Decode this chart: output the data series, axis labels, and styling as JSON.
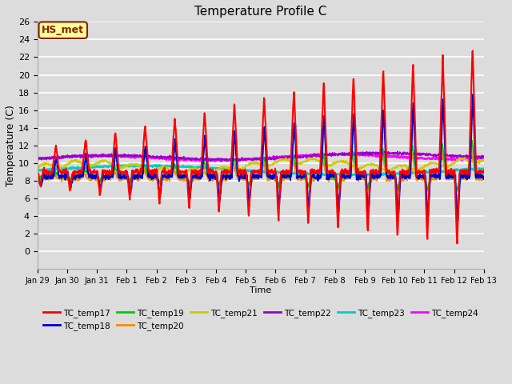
{
  "title": "Temperature Profile C",
  "xlabel": "Time",
  "ylabel": "Temperature (C)",
  "ylim": [
    -2,
    26
  ],
  "yticks": [
    0,
    2,
    4,
    6,
    8,
    10,
    12,
    14,
    16,
    18,
    20,
    22,
    24,
    26
  ],
  "bg_color": "#dcdcdc",
  "annotation_text": "HS_met",
  "annotation_color": "#8b2000",
  "annotation_bg": "#ffff99",
  "series_colors": {
    "TC_temp17": "#ff0000",
    "TC_temp18": "#0000cc",
    "TC_temp19": "#00cc00",
    "TC_temp20": "#ff8800",
    "TC_temp21": "#cccc00",
    "TC_temp22": "#9900cc",
    "TC_temp23": "#00cccc",
    "TC_temp24": "#ff00ff"
  },
  "x_tick_labels": [
    "Jan 29",
    "Jan 30",
    "Jan 31",
    "Feb 1",
    "Feb 2",
    "Feb 3",
    "Feb 4",
    "Feb 5",
    "Feb 6",
    "Feb 7",
    "Feb 8",
    "Feb 9",
    "Feb 10",
    "Feb 11",
    "Feb 12",
    "Feb 13"
  ],
  "x_tick_positions": [
    0,
    1,
    2,
    3,
    4,
    5,
    6,
    7,
    8,
    9,
    10,
    11,
    12,
    13,
    14,
    15
  ]
}
